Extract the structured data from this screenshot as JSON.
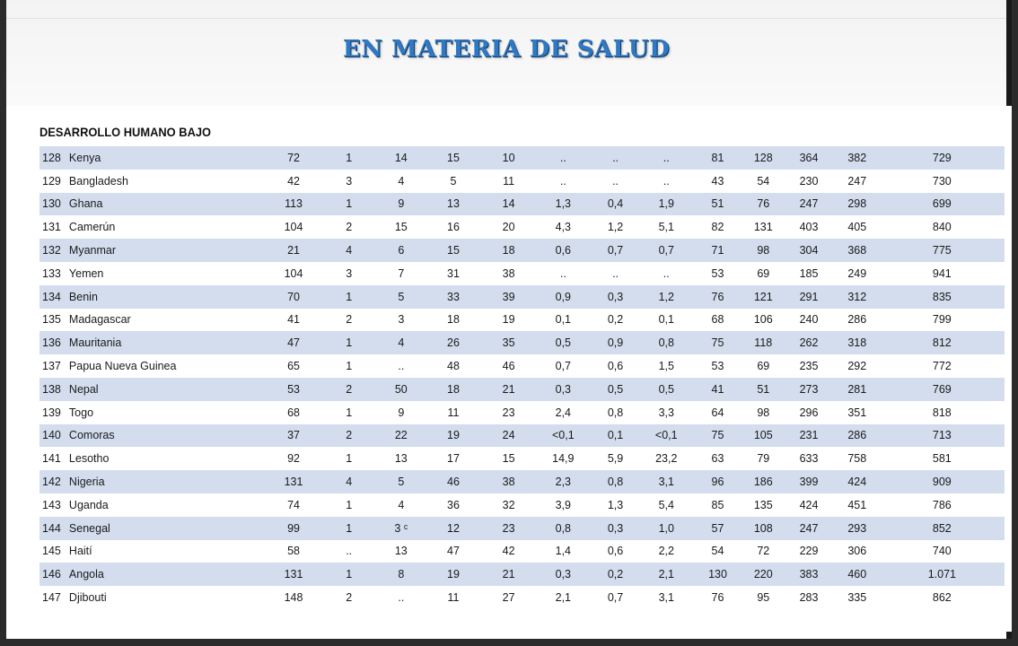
{
  "title": "EN MATERIA DE SALUD",
  "section": "DESARROLLO HUMANO BAJO",
  "rows": [
    [
      "128",
      "Kenya",
      "72",
      "1",
      "14",
      "15",
      "10",
      "..",
      "..",
      "..",
      "81",
      "128",
      "364",
      "382",
      "729"
    ],
    [
      "129",
      "Bangladesh",
      "42",
      "3",
      "4",
      "5",
      "11",
      "..",
      "..",
      "..",
      "43",
      "54",
      "230",
      "247",
      "730"
    ],
    [
      "130",
      "Ghana",
      "113",
      "1",
      "9",
      "13",
      "14",
      "1,3",
      "0,4",
      "1,9",
      "51",
      "76",
      "247",
      "298",
      "699"
    ],
    [
      "131",
      "Camerún",
      "104",
      "2",
      "15",
      "16",
      "20",
      "4,3",
      "1,2",
      "5,1",
      "82",
      "131",
      "403",
      "405",
      "840"
    ],
    [
      "132",
      "Myanmar",
      "21",
      "4",
      "6",
      "15",
      "18",
      "0,6",
      "0,7",
      "0,7",
      "71",
      "98",
      "304",
      "368",
      "775"
    ],
    [
      "133",
      "Yemen",
      "104",
      "3",
      "7",
      "31",
      "38",
      "..",
      "..",
      "..",
      "53",
      "69",
      "185",
      "249",
      "941"
    ],
    [
      "134",
      "Benin",
      "70",
      "1",
      "5",
      "33",
      "39",
      "0,9",
      "0,3",
      "1,2",
      "76",
      "121",
      "291",
      "312",
      "835"
    ],
    [
      "135",
      "Madagascar",
      "41",
      "2",
      "3",
      "18",
      "19",
      "0,1",
      "0,2",
      "0,1",
      "68",
      "106",
      "240",
      "286",
      "799"
    ],
    [
      "136",
      "Mauritania",
      "47",
      "1",
      "4",
      "26",
      "35",
      "0,5",
      "0,9",
      "0,8",
      "75",
      "118",
      "262",
      "318",
      "812"
    ],
    [
      "137",
      "Papua Nueva Guinea",
      "65",
      "1",
      "..",
      "48",
      "46",
      "0,7",
      "0,6",
      "1,5",
      "53",
      "69",
      "235",
      "292",
      "772"
    ],
    [
      "138",
      "Nepal",
      "53",
      "2",
      "50",
      "18",
      "21",
      "0,3",
      "0,5",
      "0,5",
      "41",
      "51",
      "273",
      "281",
      "769"
    ],
    [
      "139",
      "Togo",
      "68",
      "1",
      "9",
      "11",
      "23",
      "2,4",
      "0,8",
      "3,3",
      "64",
      "98",
      "296",
      "351",
      "818"
    ],
    [
      "140",
      "Comoras",
      "37",
      "2",
      "22",
      "19",
      "24",
      "<0,1",
      "0,1",
      "<0,1",
      "75",
      "105",
      "231",
      "286",
      "713"
    ],
    [
      "141",
      "Lesotho",
      "92",
      "1",
      "13",
      "17",
      "15",
      "14,9",
      "5,9",
      "23,2",
      "63",
      "79",
      "633",
      "758",
      "581"
    ],
    [
      "142",
      "Nigeria",
      "131",
      "4",
      "5",
      "46",
      "38",
      "2,3",
      "0,8",
      "3,1",
      "96",
      "186",
      "399",
      "424",
      "909"
    ],
    [
      "143",
      "Uganda",
      "74",
      "1",
      "4",
      "36",
      "32",
      "3,9",
      "1,3",
      "5,4",
      "85",
      "135",
      "424",
      "451",
      "786"
    ],
    [
      "144",
      "Senegal",
      "99",
      "1",
      "3 ᶜ",
      "12",
      "23",
      "0,8",
      "0,3",
      "1,0",
      "57",
      "108",
      "247",
      "293",
      "852"
    ],
    [
      "145",
      "Haití",
      "58",
      "..",
      "13",
      "47",
      "42",
      "1,4",
      "0,6",
      "2,2",
      "54",
      "72",
      "229",
      "306",
      "740"
    ],
    [
      "146",
      "Angola",
      "131",
      "1",
      "8",
      "19",
      "21",
      "0,3",
      "0,2",
      "2,1",
      "130",
      "220",
      "383",
      "460",
      "1.071"
    ],
    [
      "147",
      "Djibouti",
      "148",
      "2",
      "..",
      "11",
      "27",
      "2,1",
      "0,7",
      "3,1",
      "76",
      "95",
      "283",
      "335",
      "862"
    ]
  ]
}
